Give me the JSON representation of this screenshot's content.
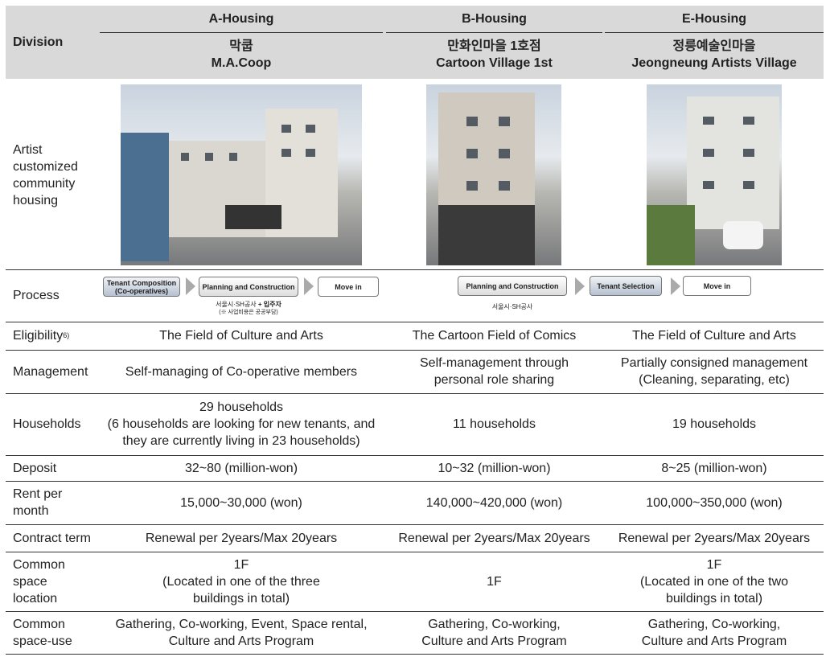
{
  "header": {
    "division": "Division",
    "columns": [
      {
        "group": "A-Housing",
        "name_ko": "막쿱",
        "name_en": "M.A.Coop"
      },
      {
        "group": "B-Housing",
        "name_ko": "만화인마을 1호점",
        "name_en": "Cartoon Village 1st"
      },
      {
        "group": "E-Housing",
        "name_ko": "정릉예술인마을",
        "name_en": "Jeongneung Artists Village"
      }
    ]
  },
  "photo_row": {
    "label": "Artist customized community housing"
  },
  "process": {
    "label": "Process",
    "a": {
      "steps": [
        "Tenant Composition (Co-operatives)",
        "Planning and Construction",
        "Move in"
      ],
      "note1": "서울시·SH공사",
      "note1_bold": "+ 입주자",
      "note2": "(※ 사업비용은 공공부담)"
    },
    "b": {
      "steps": [
        "Planning and Construction",
        "Tenant Selection",
        "Move in"
      ],
      "note": "서울시·SH공사"
    }
  },
  "rows": [
    {
      "label": "Eligibility",
      "sup": "6)",
      "a": "The Field of Culture and Arts",
      "b": "The Cartoon Field of Comics",
      "e": "The Field of Culture and Arts"
    },
    {
      "label": "Management",
      "a": "Self-managing of Co-operative members",
      "b": "Self-management through personal role sharing",
      "e": "Partially consigned management (Cleaning, separating, etc)"
    },
    {
      "label": "Households",
      "a": "29 households",
      "a2": "(6 households are looking for new tenants, and they are currently living in 23 households)",
      "b": "11 households",
      "e": "19 households"
    },
    {
      "label": "Deposit",
      "a": "32~80 (million-won)",
      "b": "10~32 (million-won)",
      "e": "8~25 (million-won)"
    },
    {
      "label": "Rent per month",
      "a": "15,000~30,000 (won)",
      "b": "140,000~420,000 (won)",
      "e": "100,000~350,000 (won)"
    },
    {
      "label": "Contract term",
      "a": "Renewal per 2years/Max 20years",
      "b": "Renewal per 2years/Max 20years",
      "e": "Renewal per 2years/Max 20years"
    },
    {
      "label": "Common space location",
      "a": "1F",
      "a2": "(Located in one of the three buildings in total)",
      "b": "1F",
      "e": "1F",
      "e2": "(Located in one of the two buildings in total)"
    },
    {
      "label": "Common space-use",
      "a": "Gathering, Co-working, Event, Space rental, Culture and Arts Program",
      "b": "Gathering, Co-working, Culture and Arts Program",
      "e": "Gathering, Co-working, Culture and Arts Program"
    }
  ]
}
